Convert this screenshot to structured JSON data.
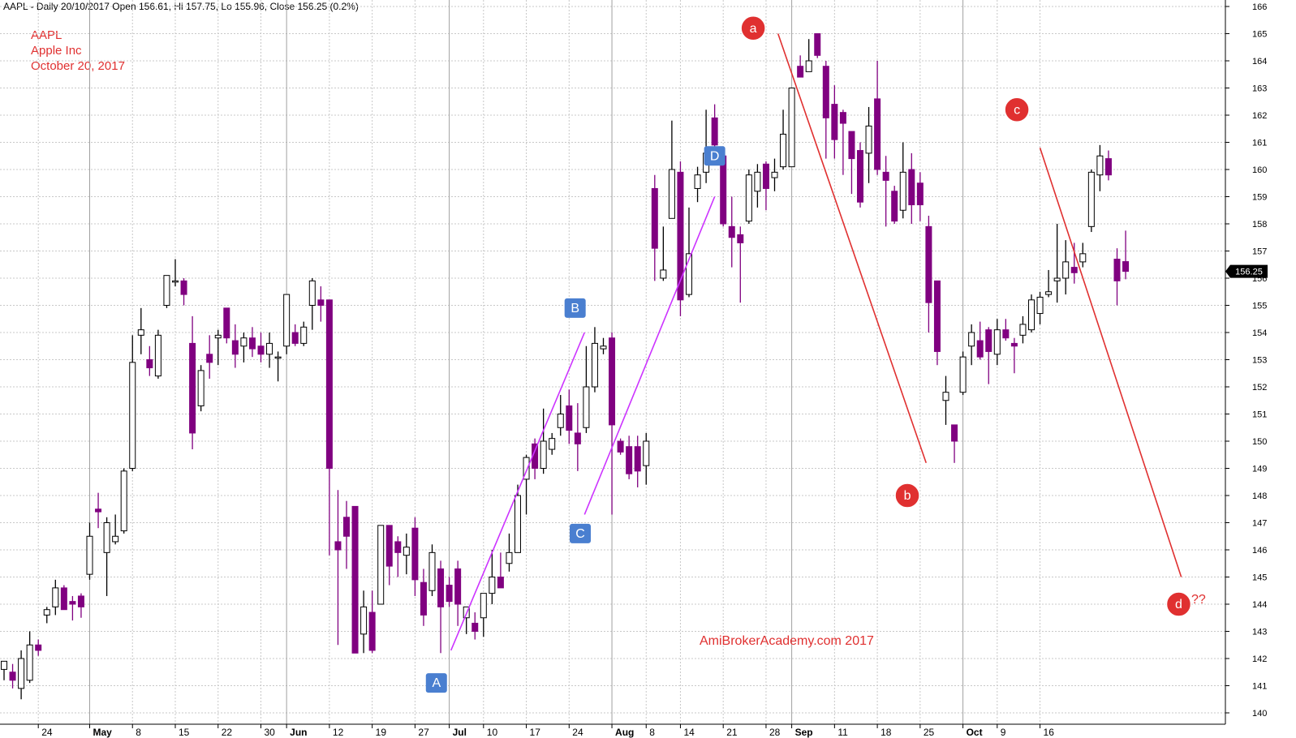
{
  "header": {
    "text": "AAPL - Daily 20/10/2017 Open 156.61, Hi 157.75, Lo 155.96, Close 156.25 (0.2%)"
  },
  "title": {
    "line1": "AAPL",
    "line2": "Apple Inc",
    "line3": "October 20, 2017"
  },
  "watermark": "AmiBrokerAcademy.com  2017",
  "question": "??",
  "colors": {
    "bear_fill": "#800080",
    "bull_fill": "#ffffff",
    "wick": "#000000",
    "trend_red": "#e03030",
    "trend_purple": "#cc33ff",
    "marker_red": "#e03030",
    "marker_blue": "#4a7fd0",
    "grid": "#c8c8c8",
    "month_line": "#a0a0a0"
  },
  "chart_data": {
    "type": "candlestick",
    "symbol": "AAPL",
    "price_label": "156.25",
    "y_ticks": [
      140,
      141,
      142,
      143,
      144,
      145,
      146,
      147,
      148,
      149,
      150,
      151,
      152,
      153,
      154,
      155,
      156,
      157,
      158,
      159,
      160,
      161,
      162,
      163,
      164,
      165,
      166
    ],
    "ylim": [
      139.8,
      166.2
    ],
    "x_labels": [
      {
        "i": 4,
        "label": "24"
      },
      {
        "i": 10,
        "label": "May",
        "month": true
      },
      {
        "i": 15,
        "label": "8"
      },
      {
        "i": 20,
        "label": "15"
      },
      {
        "i": 25,
        "label": "22"
      },
      {
        "i": 30,
        "label": "30"
      },
      {
        "i": 33,
        "label": "Jun",
        "month": true
      },
      {
        "i": 38,
        "label": "12"
      },
      {
        "i": 43,
        "label": "19"
      },
      {
        "i": 48,
        "label": "27"
      },
      {
        "i": 52,
        "label": "Jul",
        "month": true
      },
      {
        "i": 56,
        "label": "10"
      },
      {
        "i": 61,
        "label": "17"
      },
      {
        "i": 66,
        "label": "24"
      },
      {
        "i": 71,
        "label": "Aug",
        "month": true
      },
      {
        "i": 75,
        "label": "8"
      },
      {
        "i": 79,
        "label": "14"
      },
      {
        "i": 84,
        "label": "21"
      },
      {
        "i": 89,
        "label": "28"
      },
      {
        "i": 92,
        "label": "Sep",
        "month": true
      },
      {
        "i": 97,
        "label": "11"
      },
      {
        "i": 102,
        "label": "18"
      },
      {
        "i": 107,
        "label": "25"
      },
      {
        "i": 112,
        "label": "Oct",
        "month": true
      },
      {
        "i": 116,
        "label": "9"
      },
      {
        "i": 121,
        "label": "16"
      }
    ],
    "candles": [
      {
        "o": 141.6,
        "h": 141.9,
        "l": 141.2,
        "c": 141.9
      },
      {
        "o": 141.5,
        "h": 141.8,
        "l": 140.9,
        "c": 141.2
      },
      {
        "o": 140.9,
        "h": 142.3,
        "l": 140.5,
        "c": 142.0
      },
      {
        "o": 141.2,
        "h": 143.0,
        "l": 141.1,
        "c": 142.5
      },
      {
        "o": 142.5,
        "h": 142.7,
        "l": 142.1,
        "c": 142.3
      },
      {
        "o": 143.6,
        "h": 143.9,
        "l": 143.3,
        "c": 143.8
      },
      {
        "o": 143.9,
        "h": 144.9,
        "l": 143.6,
        "c": 144.6
      },
      {
        "o": 144.6,
        "h": 144.7,
        "l": 143.8,
        "c": 143.8
      },
      {
        "o": 144.1,
        "h": 144.3,
        "l": 143.4,
        "c": 144.0
      },
      {
        "o": 144.3,
        "h": 144.4,
        "l": 143.5,
        "c": 143.9
      },
      {
        "o": 145.1,
        "h": 147.0,
        "l": 144.9,
        "c": 146.5
      },
      {
        "o": 147.5,
        "h": 148.1,
        "l": 146.8,
        "c": 147.4
      },
      {
        "o": 145.9,
        "h": 147.2,
        "l": 144.3,
        "c": 147.0
      },
      {
        "o": 146.3,
        "h": 147.3,
        "l": 146.2,
        "c": 146.5
      },
      {
        "o": 146.7,
        "h": 149.0,
        "l": 146.6,
        "c": 148.9
      },
      {
        "o": 149.0,
        "h": 153.9,
        "l": 148.9,
        "c": 152.9
      },
      {
        "o": 153.9,
        "h": 154.9,
        "l": 153.2,
        "c": 154.1
      },
      {
        "o": 153.0,
        "h": 153.5,
        "l": 152.4,
        "c": 152.7
      },
      {
        "o": 152.4,
        "h": 154.1,
        "l": 152.3,
        "c": 153.9
      },
      {
        "o": 155.0,
        "h": 156.1,
        "l": 154.9,
        "c": 156.1
      },
      {
        "o": 155.9,
        "h": 156.7,
        "l": 155.7,
        "c": 155.9
      },
      {
        "o": 155.9,
        "h": 156.0,
        "l": 155.0,
        "c": 155.4
      },
      {
        "o": 153.6,
        "h": 154.6,
        "l": 149.7,
        "c": 150.3
      },
      {
        "o": 151.3,
        "h": 152.8,
        "l": 151.1,
        "c": 152.6
      },
      {
        "o": 153.2,
        "h": 153.9,
        "l": 152.3,
        "c": 152.9
      },
      {
        "o": 153.8,
        "h": 154.1,
        "l": 152.8,
        "c": 153.9
      },
      {
        "o": 154.9,
        "h": 154.9,
        "l": 153.6,
        "c": 153.8
      },
      {
        "o": 153.7,
        "h": 154.3,
        "l": 152.7,
        "c": 153.2
      },
      {
        "o": 153.5,
        "h": 154.0,
        "l": 152.9,
        "c": 153.8
      },
      {
        "o": 153.8,
        "h": 154.2,
        "l": 153.1,
        "c": 153.4
      },
      {
        "o": 153.5,
        "h": 154.0,
        "l": 152.9,
        "c": 153.2
      },
      {
        "o": 153.2,
        "h": 154.0,
        "l": 152.7,
        "c": 153.6
      },
      {
        "o": 153.1,
        "h": 153.3,
        "l": 152.2,
        "c": 153.1
      },
      {
        "o": 153.5,
        "h": 155.4,
        "l": 153.2,
        "c": 155.4
      },
      {
        "o": 154.0,
        "h": 154.3,
        "l": 153.5,
        "c": 153.6
      },
      {
        "o": 153.6,
        "h": 154.4,
        "l": 153.5,
        "c": 154.2
      },
      {
        "o": 155.0,
        "h": 156.0,
        "l": 154.1,
        "c": 155.9
      },
      {
        "o": 155.2,
        "h": 155.7,
        "l": 154.4,
        "c": 155.0
      },
      {
        "o": 155.2,
        "h": 155.2,
        "l": 145.8,
        "c": 149.0
      },
      {
        "o": 146.3,
        "h": 148.2,
        "l": 142.5,
        "c": 146.0
      },
      {
        "o": 147.2,
        "h": 147.8,
        "l": 145.3,
        "c": 146.5
      },
      {
        "o": 147.6,
        "h": 147.6,
        "l": 142.2,
        "c": 142.2
      },
      {
        "o": 142.9,
        "h": 144.5,
        "l": 142.2,
        "c": 143.9
      },
      {
        "o": 143.7,
        "h": 144.5,
        "l": 142.2,
        "c": 142.3
      },
      {
        "o": 144.0,
        "h": 146.9,
        "l": 144.0,
        "c": 146.9
      },
      {
        "o": 146.9,
        "h": 146.9,
        "l": 144.7,
        "c": 145.4
      },
      {
        "o": 146.3,
        "h": 146.5,
        "l": 145.0,
        "c": 145.9
      },
      {
        "o": 145.8,
        "h": 146.6,
        "l": 145.1,
        "c": 146.1
      },
      {
        "o": 146.8,
        "h": 147.2,
        "l": 144.3,
        "c": 144.9
      },
      {
        "o": 144.8,
        "h": 145.3,
        "l": 143.2,
        "c": 143.6
      },
      {
        "o": 144.5,
        "h": 146.2,
        "l": 144.3,
        "c": 145.9
      },
      {
        "o": 145.3,
        "h": 145.6,
        "l": 142.2,
        "c": 143.9
      },
      {
        "o": 144.7,
        "h": 145.0,
        "l": 143.9,
        "c": 144.1
      },
      {
        "o": 145.3,
        "h": 145.6,
        "l": 143.2,
        "c": 144.0
      },
      {
        "o": 143.5,
        "h": 143.9,
        "l": 142.9,
        "c": 143.9
      },
      {
        "o": 143.3,
        "h": 143.7,
        "l": 142.7,
        "c": 143.0
      },
      {
        "o": 143.5,
        "h": 144.4,
        "l": 142.8,
        "c": 144.4
      },
      {
        "o": 144.4,
        "h": 146.0,
        "l": 144.0,
        "c": 145.0
      },
      {
        "o": 145.0,
        "h": 145.9,
        "l": 144.6,
        "c": 144.6
      },
      {
        "o": 145.5,
        "h": 146.6,
        "l": 145.2,
        "c": 145.9
      },
      {
        "o": 145.9,
        "h": 148.4,
        "l": 145.9,
        "c": 148.0
      },
      {
        "o": 148.6,
        "h": 149.5,
        "l": 147.3,
        "c": 149.4
      },
      {
        "o": 149.9,
        "h": 150.1,
        "l": 148.6,
        "c": 149.0
      },
      {
        "o": 149.0,
        "h": 151.2,
        "l": 148.8,
        "c": 150.0
      },
      {
        "o": 149.7,
        "h": 150.3,
        "l": 149.5,
        "c": 150.1
      },
      {
        "o": 150.5,
        "h": 151.7,
        "l": 150.2,
        "c": 151.0
      },
      {
        "o": 151.3,
        "h": 151.9,
        "l": 149.9,
        "c": 150.4
      },
      {
        "o": 150.3,
        "h": 151.4,
        "l": 148.9,
        "c": 149.9
      },
      {
        "o": 150.5,
        "h": 153.5,
        "l": 150.3,
        "c": 152.0
      },
      {
        "o": 152.0,
        "h": 154.2,
        "l": 151.8,
        "c": 153.6
      },
      {
        "o": 153.4,
        "h": 153.8,
        "l": 153.2,
        "c": 153.5
      },
      {
        "o": 153.8,
        "h": 154.0,
        "l": 147.3,
        "c": 150.6
      },
      {
        "o": 150.0,
        "h": 150.1,
        "l": 149.5,
        "c": 149.6
      },
      {
        "o": 149.8,
        "h": 150.2,
        "l": 148.6,
        "c": 148.8
      },
      {
        "o": 149.8,
        "h": 150.2,
        "l": 148.3,
        "c": 148.9
      },
      {
        "o": 149.1,
        "h": 150.3,
        "l": 148.4,
        "c": 150.0
      },
      {
        "o": 159.3,
        "h": 159.8,
        "l": 155.9,
        "c": 157.1
      },
      {
        "o": 156.0,
        "h": 157.9,
        "l": 155.9,
        "c": 156.3
      },
      {
        "o": 158.2,
        "h": 161.8,
        "l": 158.2,
        "c": 160.0
      },
      {
        "o": 159.9,
        "h": 160.3,
        "l": 154.6,
        "c": 155.2
      },
      {
        "o": 155.4,
        "h": 158.6,
        "l": 155.3,
        "c": 156.9
      },
      {
        "o": 159.3,
        "h": 160.1,
        "l": 158.8,
        "c": 159.8
      },
      {
        "o": 159.9,
        "h": 162.2,
        "l": 159.5,
        "c": 160.6
      },
      {
        "o": 161.9,
        "h": 162.4,
        "l": 160.5,
        "c": 160.9
      },
      {
        "o": 160.5,
        "h": 160.6,
        "l": 157.9,
        "c": 158.0
      },
      {
        "o": 157.9,
        "h": 159.0,
        "l": 156.4,
        "c": 157.5
      },
      {
        "o": 157.6,
        "h": 157.9,
        "l": 155.1,
        "c": 157.3
      },
      {
        "o": 158.1,
        "h": 160.0,
        "l": 158.0,
        "c": 159.8
      },
      {
        "o": 159.2,
        "h": 160.2,
        "l": 158.6,
        "c": 159.9
      },
      {
        "o": 160.2,
        "h": 160.3,
        "l": 158.5,
        "c": 159.3
      },
      {
        "o": 159.7,
        "h": 160.4,
        "l": 159.2,
        "c": 159.9
      },
      {
        "o": 160.1,
        "h": 162.2,
        "l": 160.0,
        "c": 161.3
      },
      {
        "o": 160.1,
        "h": 163.0,
        "l": 160.1,
        "c": 163.0
      },
      {
        "o": 163.8,
        "h": 164.2,
        "l": 163.4,
        "c": 163.4
      },
      {
        "o": 163.6,
        "h": 164.8,
        "l": 163.6,
        "c": 164.0
      },
      {
        "o": 165.0,
        "h": 165.0,
        "l": 164.1,
        "c": 164.2
      },
      {
        "o": 163.8,
        "h": 164.0,
        "l": 160.4,
        "c": 161.9
      },
      {
        "o": 162.4,
        "h": 163.1,
        "l": 160.4,
        "c": 161.1
      },
      {
        "o": 162.1,
        "h": 162.2,
        "l": 159.8,
        "c": 161.7
      },
      {
        "o": 161.4,
        "h": 161.4,
        "l": 159.1,
        "c": 160.4
      },
      {
        "o": 160.7,
        "h": 161.0,
        "l": 158.6,
        "c": 158.8
      },
      {
        "o": 160.6,
        "h": 162.3,
        "l": 159.5,
        "c": 161.6
      },
      {
        "o": 162.6,
        "h": 164.0,
        "l": 159.8,
        "c": 160.0
      },
      {
        "o": 159.9,
        "h": 160.5,
        "l": 157.9,
        "c": 159.6
      },
      {
        "o": 159.2,
        "h": 159.4,
        "l": 158.0,
        "c": 158.1
      },
      {
        "o": 158.5,
        "h": 161.0,
        "l": 158.2,
        "c": 159.9
      },
      {
        "o": 160.0,
        "h": 160.6,
        "l": 158.0,
        "c": 158.7
      },
      {
        "o": 159.5,
        "h": 159.9,
        "l": 158.1,
        "c": 158.7
      },
      {
        "o": 157.9,
        "h": 158.3,
        "l": 154.0,
        "c": 155.1
      },
      {
        "o": 155.9,
        "h": 155.9,
        "l": 152.8,
        "c": 153.3
      },
      {
        "o": 151.5,
        "h": 152.4,
        "l": 150.6,
        "c": 151.8
      },
      {
        "o": 150.6,
        "h": 150.6,
        "l": 149.2,
        "c": 150.0
      },
      {
        "o": 151.8,
        "h": 153.3,
        "l": 151.7,
        "c": 153.1
      },
      {
        "o": 153.5,
        "h": 154.3,
        "l": 152.8,
        "c": 154.0
      },
      {
        "o": 153.7,
        "h": 154.4,
        "l": 153.0,
        "c": 153.1
      },
      {
        "o": 154.1,
        "h": 154.2,
        "l": 152.1,
        "c": 153.3
      },
      {
        "o": 153.2,
        "h": 154.5,
        "l": 152.8,
        "c": 154.1
      },
      {
        "o": 154.1,
        "h": 154.5,
        "l": 153.7,
        "c": 153.8
      },
      {
        "o": 153.6,
        "h": 153.8,
        "l": 152.5,
        "c": 153.5
      },
      {
        "o": 153.9,
        "h": 154.6,
        "l": 153.6,
        "c": 154.3
      },
      {
        "o": 154.1,
        "h": 155.4,
        "l": 154.0,
        "c": 155.2
      },
      {
        "o": 154.7,
        "h": 155.5,
        "l": 154.3,
        "c": 155.3
      },
      {
        "o": 155.4,
        "h": 156.3,
        "l": 155.3,
        "c": 155.5
      },
      {
        "o": 155.9,
        "h": 158.0,
        "l": 155.1,
        "c": 156.0
      },
      {
        "o": 156.0,
        "h": 157.4,
        "l": 155.4,
        "c": 156.6
      },
      {
        "o": 156.4,
        "h": 157.3,
        "l": 155.8,
        "c": 156.2
      },
      {
        "o": 156.6,
        "h": 157.3,
        "l": 156.4,
        "c": 156.9
      },
      {
        "o": 157.9,
        "h": 160.0,
        "l": 157.7,
        "c": 159.9
      },
      {
        "o": 159.8,
        "h": 160.9,
        "l": 159.2,
        "c": 160.5
      },
      {
        "o": 160.4,
        "h": 160.7,
        "l": 159.6,
        "c": 159.8
      },
      {
        "o": 156.7,
        "h": 157.1,
        "l": 155.0,
        "c": 155.9
      },
      {
        "o": 156.61,
        "h": 157.75,
        "l": 155.96,
        "c": 156.25
      }
    ],
    "trend_lines": [
      {
        "name": "A-B",
        "color": "purple",
        "from": {
          "i": 52.2,
          "p": 142.3
        },
        "to": {
          "i": 67.8,
          "p": 154.0
        }
      },
      {
        "name": "C-D",
        "color": "purple",
        "from": {
          "i": 67.8,
          "p": 147.3
        },
        "to": {
          "i": 83.0,
          "p": 159.0
        }
      },
      {
        "name": "a-b",
        "color": "red",
        "from": {
          "i": 90.4,
          "p": 165.0
        },
        "to": {
          "i": 107.7,
          "p": 149.2
        }
      },
      {
        "name": "c-d",
        "color": "red",
        "from": {
          "i": 121.0,
          "p": 160.8
        },
        "to": {
          "i": 137.5,
          "p": 145.0
        }
      }
    ],
    "points": [
      {
        "label": "a",
        "shape": "circle",
        "i": 87.5,
        "p": 165.2
      },
      {
        "label": "b",
        "shape": "circle",
        "i": 105.5,
        "p": 148.0
      },
      {
        "label": "c",
        "shape": "circle",
        "i": 118.3,
        "p": 162.2
      },
      {
        "label": "d",
        "shape": "circle",
        "i": 137.2,
        "p": 144.0
      },
      {
        "label": "A",
        "shape": "box",
        "i": 50.5,
        "p": 141.1
      },
      {
        "label": "B",
        "shape": "box",
        "i": 66.7,
        "p": 154.9
      },
      {
        "label": "C",
        "shape": "box",
        "i": 67.3,
        "p": 146.6
      },
      {
        "label": "D",
        "shape": "box",
        "i": 83.0,
        "p": 160.5
      }
    ]
  }
}
